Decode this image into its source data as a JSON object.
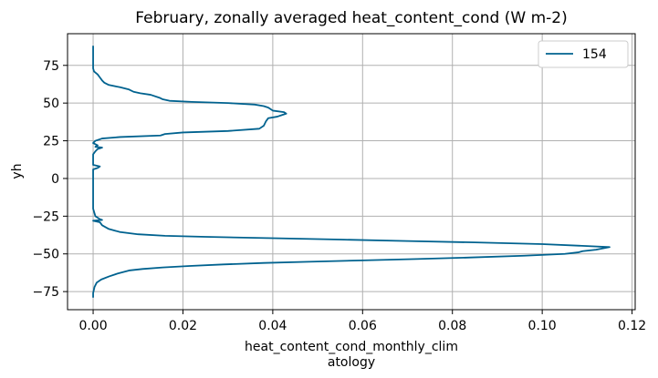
{
  "chart_data": {
    "type": "line",
    "title": "February, zonally averaged heat_content_cond (W m-2)",
    "xlabel_lines": [
      "heat_content_cond_monthly_clim",
      "atology"
    ],
    "ylabel": "yh",
    "xlim": [
      -0.0057,
      0.1207
    ],
    "ylim": [
      -87,
      96
    ],
    "xticks": [
      0.0,
      0.02,
      0.04,
      0.06,
      0.08,
      0.1,
      0.12
    ],
    "xtick_labels": [
      "0.00",
      "0.02",
      "0.04",
      "0.06",
      "0.08",
      "0.10",
      "0.12"
    ],
    "yticks": [
      -75,
      -50,
      -25,
      0,
      25,
      50,
      75
    ],
    "ytick_labels": [
      "−75",
      "−50",
      "−25",
      "0",
      "25",
      "50",
      "75"
    ],
    "grid": true,
    "legend_position": "upper-right",
    "colors": {
      "series": "#00628f",
      "grid": "#b0b0b0",
      "axes": "#000000"
    },
    "series": [
      {
        "name": "154",
        "points": [
          [
            0.0,
            -79
          ],
          [
            0.0,
            -76
          ],
          [
            0.0003,
            -72
          ],
          [
            0.0008,
            -69
          ],
          [
            0.0018,
            -67
          ],
          [
            0.0035,
            -65
          ],
          [
            0.0055,
            -63
          ],
          [
            0.008,
            -61
          ],
          [
            0.011,
            -60
          ],
          [
            0.0155,
            -59
          ],
          [
            0.0215,
            -58
          ],
          [
            0.029,
            -57
          ],
          [
            0.038,
            -56
          ],
          [
            0.048,
            -55.2
          ],
          [
            0.06,
            -54.3
          ],
          [
            0.072,
            -53.4
          ],
          [
            0.084,
            -52.4
          ],
          [
            0.096,
            -51.2
          ],
          [
            0.105,
            -50
          ],
          [
            0.108,
            -49
          ],
          [
            0.109,
            -48.2
          ],
          [
            0.112,
            -47.2
          ],
          [
            0.115,
            -45.5
          ],
          [
            0.11,
            -44.8
          ],
          [
            0.1,
            -43.5
          ],
          [
            0.085,
            -42.4
          ],
          [
            0.07,
            -41.5
          ],
          [
            0.055,
            -40.5
          ],
          [
            0.04,
            -39.6
          ],
          [
            0.025,
            -38.7
          ],
          [
            0.016,
            -38
          ],
          [
            0.01,
            -37
          ],
          [
            0.006,
            -35.5
          ],
          [
            0.0035,
            -33.5
          ],
          [
            0.002,
            -31
          ],
          [
            0.0015,
            -29
          ],
          [
            0.0,
            -28
          ],
          [
            0.002,
            -27.5
          ],
          [
            0.0015,
            -27
          ],
          [
            0.0005,
            -25
          ],
          [
            0.0,
            -20
          ],
          [
            0.0,
            -10
          ],
          [
            0.0,
            0
          ],
          [
            0.0,
            3
          ],
          [
            0.0,
            6
          ],
          [
            0.001,
            7
          ],
          [
            0.0015,
            8
          ],
          [
            0.0,
            9
          ],
          [
            0.0,
            13
          ],
          [
            0.0,
            16
          ],
          [
            0.0005,
            18
          ],
          [
            0.001,
            19.5
          ],
          [
            0.002,
            20.5
          ],
          [
            0.0005,
            21
          ],
          [
            0.001,
            22
          ],
          [
            0.0,
            23.5
          ],
          [
            0.0005,
            25
          ],
          [
            0.002,
            26.5
          ],
          [
            0.006,
            27.5
          ],
          [
            0.015,
            28.5
          ],
          [
            0.016,
            29.5
          ],
          [
            0.02,
            30.5
          ],
          [
            0.03,
            31.5
          ],
          [
            0.037,
            33
          ],
          [
            0.038,
            35
          ],
          [
            0.0385,
            38
          ],
          [
            0.039,
            40
          ],
          [
            0.041,
            41
          ],
          [
            0.042,
            42
          ],
          [
            0.043,
            43
          ],
          [
            0.0425,
            44
          ],
          [
            0.04,
            45
          ],
          [
            0.0395,
            46
          ],
          [
            0.039,
            47
          ],
          [
            0.038,
            48
          ],
          [
            0.036,
            49
          ],
          [
            0.03,
            50
          ],
          [
            0.022,
            50.8
          ],
          [
            0.017,
            51.5
          ],
          [
            0.0155,
            52.5
          ],
          [
            0.0148,
            53.5
          ],
          [
            0.0128,
            55.5
          ],
          [
            0.0105,
            56.5
          ],
          [
            0.009,
            57.5
          ],
          [
            0.008,
            59
          ],
          [
            0.006,
            60.5
          ],
          [
            0.0035,
            62
          ],
          [
            0.0025,
            63.5
          ],
          [
            0.002,
            65
          ],
          [
            0.0015,
            67
          ],
          [
            0.001,
            69
          ],
          [
            0.0002,
            71
          ],
          [
            0.0,
            73
          ],
          [
            0.0,
            77
          ],
          [
            0.0,
            82
          ],
          [
            0.0,
            88
          ]
        ]
      }
    ]
  }
}
